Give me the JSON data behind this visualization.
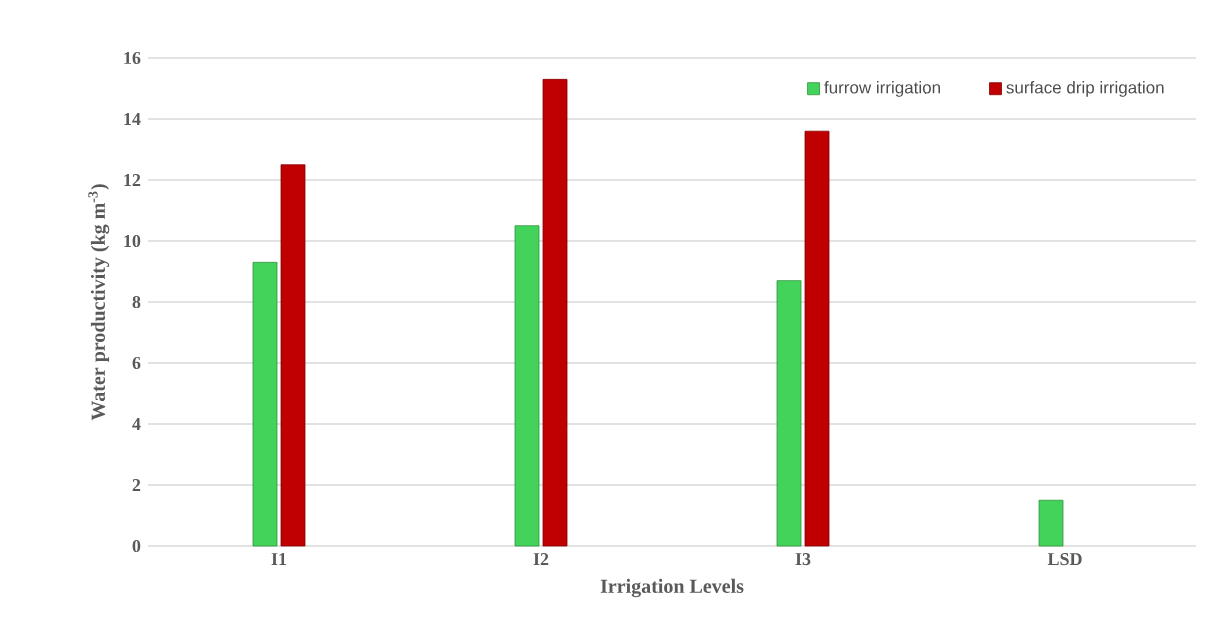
{
  "chart_data": {
    "type": "bar",
    "xlabel": "Irrigation  Levels",
    "ylabel": "Water productivity (kg m$^{-3}$)",
    "categories": [
      "I1",
      "I2",
      "I3",
      "LSD"
    ],
    "series": [
      {
        "name": "furrow irrigation",
        "color": "#44d35a",
        "values": [
          9.3,
          10.5,
          8.7,
          1.5
        ]
      },
      {
        "name": "surface drip irrigation",
        "color": "#c00000",
        "values": [
          12.5,
          15.3,
          13.6,
          null
        ]
      }
    ],
    "ylim": [
      0,
      16
    ],
    "yticks": [
      0,
      2,
      4,
      6,
      8,
      10,
      12,
      14,
      16
    ],
    "grid": "y",
    "legend": "top right"
  }
}
